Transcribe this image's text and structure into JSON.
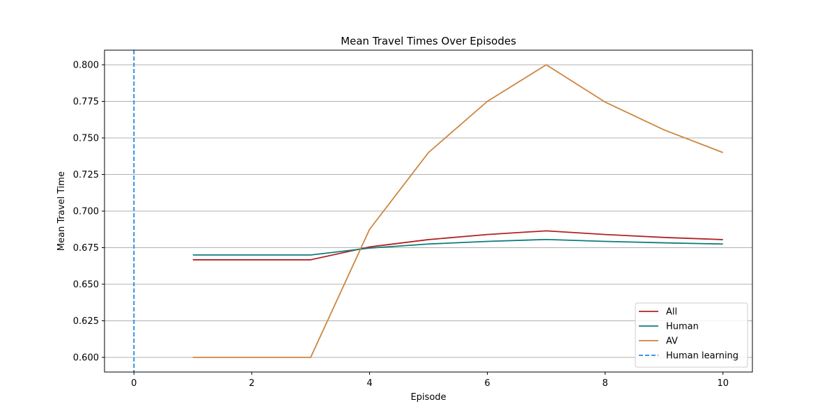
{
  "chart_data": {
    "type": "line",
    "title": "Mean Travel Times Over Episodes",
    "xlabel": "Episode",
    "ylabel": "Mean Travel Time",
    "xlim": [
      -0.5,
      10.5
    ],
    "ylim": [
      0.59,
      0.81
    ],
    "xticks": [
      0,
      2,
      4,
      6,
      8,
      10
    ],
    "xtick_labels": [
      "0",
      "2",
      "4",
      "6",
      "8",
      "10"
    ],
    "yticks": [
      0.6,
      0.625,
      0.65,
      0.675,
      0.7,
      0.725,
      0.75,
      0.775,
      0.8
    ],
    "ytick_labels": [
      "0.600",
      "0.625",
      "0.650",
      "0.675",
      "0.700",
      "0.725",
      "0.750",
      "0.775",
      "0.800"
    ],
    "grid": "horizontal",
    "legend_position": "bottom-right",
    "x": [
      1,
      2,
      3,
      4,
      5,
      6,
      7,
      8,
      9,
      10
    ],
    "series": [
      {
        "name": "All",
        "color": "#b22222",
        "style": "solid",
        "values": [
          0.6667,
          0.6667,
          0.6667,
          0.6755,
          0.6805,
          0.684,
          0.6865,
          0.684,
          0.682,
          0.6805
        ]
      },
      {
        "name": "Human",
        "color": "#0f7c7c",
        "style": "solid",
        "values": [
          0.67,
          0.67,
          0.67,
          0.6747,
          0.6775,
          0.6793,
          0.6806,
          0.6793,
          0.6783,
          0.6775
        ]
      },
      {
        "name": "AV",
        "color": "#cd853f",
        "style": "solid",
        "values": [
          0.6,
          0.6,
          0.6,
          0.6875,
          0.74,
          0.775,
          0.8,
          0.7745,
          0.7555,
          0.74
        ]
      }
    ],
    "vline": {
      "name": "Human learning",
      "x": 0,
      "color": "#1e88e5",
      "style": "dashed"
    }
  }
}
